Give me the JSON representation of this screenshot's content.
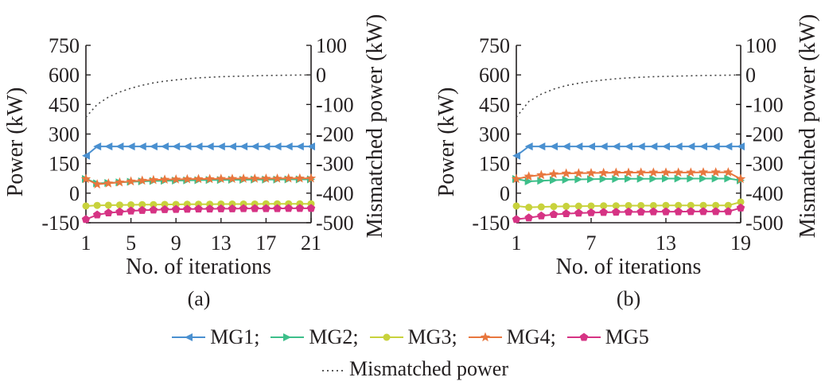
{
  "chart_data": [
    {
      "type": "line",
      "caption": "(a)",
      "xlabel": "No. of iterations",
      "ylabel": "Power (kW)",
      "y2label": "Mismatched power (kW)",
      "xlim": [
        1,
        21
      ],
      "xticks": [
        1,
        5,
        9,
        13,
        17,
        21
      ],
      "ylim": [
        -150,
        750
      ],
      "yticks": [
        -150,
        0,
        150,
        300,
        450,
        600,
        750
      ],
      "y2lim": [
        -500,
        100
      ],
      "y2ticks": [
        -500,
        -400,
        -300,
        -200,
        -100,
        0,
        100
      ],
      "x": [
        1,
        2,
        3,
        4,
        5,
        6,
        7,
        8,
        9,
        10,
        11,
        12,
        13,
        14,
        15,
        16,
        17,
        18,
        19,
        20,
        21
      ],
      "series": [
        {
          "name": "MG1",
          "axis": "left",
          "color": "#4a90d0",
          "marker": "triangle-left",
          "values": [
            190,
            237,
            237,
            237,
            237,
            237,
            237,
            237,
            237,
            237,
            237,
            237,
            237,
            237,
            237,
            237,
            237,
            237,
            237,
            237,
            237
          ]
        },
        {
          "name": "MG2",
          "axis": "left",
          "color": "#3dbf8a",
          "marker": "triangle-right",
          "values": [
            72,
            50,
            52,
            55,
            58,
            60,
            62,
            63,
            64,
            65,
            66,
            67,
            67,
            68,
            68,
            69,
            69,
            69,
            70,
            70,
            70
          ]
        },
        {
          "name": "MG3",
          "axis": "left",
          "color": "#c8d23c",
          "marker": "circle",
          "values": [
            -65,
            -62,
            -61,
            -60,
            -59,
            -58,
            -58,
            -57,
            -57,
            -56,
            -56,
            -56,
            -55,
            -55,
            -55,
            -55,
            -54,
            -54,
            -54,
            -54,
            -54
          ]
        },
        {
          "name": "MG4",
          "axis": "left",
          "color": "#e8773e",
          "marker": "star",
          "values": [
            72,
            45,
            50,
            55,
            60,
            64,
            67,
            69,
            70,
            71,
            72,
            72,
            73,
            73,
            74,
            74,
            74,
            74,
            75,
            75,
            75
          ]
        },
        {
          "name": "MG5",
          "axis": "left",
          "color": "#d63384",
          "marker": "pentagon",
          "values": [
            -133,
            -110,
            -100,
            -95,
            -90,
            -87,
            -85,
            -83,
            -82,
            -81,
            -80,
            -80,
            -79,
            -79,
            -78,
            -78,
            -78,
            -78,
            -77,
            -77,
            -77
          ]
        },
        {
          "name": "Mismatched power",
          "axis": "right",
          "color": "#444444",
          "marker": "none",
          "dash": "dotted",
          "values": [
            -143,
            -100,
            -75,
            -58,
            -45,
            -35,
            -27,
            -21,
            -17,
            -13,
            -10,
            -8,
            -6,
            -5,
            -4,
            -3,
            -2,
            -1.5,
            -1,
            -0.5,
            0
          ]
        }
      ]
    },
    {
      "type": "line",
      "caption": "(b)",
      "xlabel": "No. of iterations",
      "ylabel": "Power (kW)",
      "y2label": "Mismatched power (kW)",
      "xlim": [
        1,
        19
      ],
      "xticks": [
        1,
        7,
        13,
        19
      ],
      "ylim": [
        -150,
        750
      ],
      "yticks": [
        -150,
        0,
        150,
        300,
        450,
        600,
        750
      ],
      "y2lim": [
        -500,
        100
      ],
      "y2ticks": [
        -500,
        -400,
        -300,
        -200,
        -100,
        0,
        100
      ],
      "x": [
        1,
        2,
        3,
        4,
        5,
        6,
        7,
        8,
        9,
        10,
        11,
        12,
        13,
        14,
        15,
        16,
        17,
        18,
        19
      ],
      "series": [
        {
          "name": "MG1",
          "axis": "left",
          "color": "#4a90d0",
          "marker": "triangle-left",
          "values": [
            190,
            237,
            237,
            237,
            237,
            237,
            237,
            237,
            237,
            237,
            237,
            237,
            237,
            237,
            237,
            237,
            237,
            237,
            237
          ]
        },
        {
          "name": "MG2",
          "axis": "left",
          "color": "#3dbf8a",
          "marker": "triangle-right",
          "values": [
            72,
            60,
            63,
            66,
            68,
            70,
            71,
            72,
            72,
            73,
            73,
            73,
            74,
            74,
            74,
            74,
            74,
            74,
            65
          ]
        },
        {
          "name": "MG3",
          "axis": "left",
          "color": "#c8d23c",
          "marker": "circle",
          "values": [
            -65,
            -72,
            -70,
            -68,
            -67,
            -66,
            -65,
            -64,
            -64,
            -63,
            -63,
            -63,
            -62,
            -62,
            -62,
            -62,
            -62,
            -62,
            -45
          ]
        },
        {
          "name": "MG4",
          "axis": "left",
          "color": "#e8773e",
          "marker": "star",
          "values": [
            72,
            85,
            92,
            97,
            100,
            101,
            102,
            103,
            104,
            104,
            105,
            105,
            105,
            105,
            105,
            106,
            106,
            106,
            72
          ]
        },
        {
          "name": "MG5",
          "axis": "left",
          "color": "#d63384",
          "marker": "pentagon",
          "values": [
            -133,
            -125,
            -115,
            -108,
            -104,
            -101,
            -99,
            -97,
            -96,
            -95,
            -95,
            -94,
            -94,
            -94,
            -93,
            -93,
            -93,
            -93,
            -75
          ]
        },
        {
          "name": "Mismatched power",
          "axis": "right",
          "color": "#444444",
          "marker": "none",
          "dash": "dotted",
          "values": [
            -143,
            -90,
            -65,
            -48,
            -36,
            -28,
            -22,
            -17,
            -13,
            -10,
            -8,
            -6,
            -5,
            -4,
            -3,
            -2,
            -1.5,
            -1,
            0
          ]
        }
      ]
    }
  ],
  "legend": {
    "items": [
      {
        "label": "MG1;",
        "color": "#4a90d0",
        "marker": "triangle-left"
      },
      {
        "label": "MG2;",
        "color": "#3dbf8a",
        "marker": "triangle-right"
      },
      {
        "label": "MG3;",
        "color": "#c8d23c",
        "marker": "circle"
      },
      {
        "label": "MG4;",
        "color": "#e8773e",
        "marker": "star"
      },
      {
        "label": "MG5",
        "color": "#d63384",
        "marker": "pentagon"
      }
    ],
    "mismatch_label": "Mismatched power",
    "mismatch_color": "#444444"
  }
}
